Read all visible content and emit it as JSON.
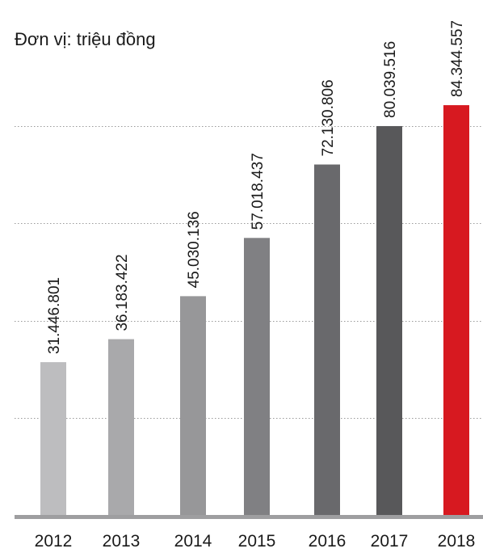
{
  "chart_data": {
    "type": "bar",
    "title": "",
    "unit_label": "Đơn vị: triệu đồng",
    "xlabel": "",
    "ylabel": "",
    "categories": [
      "2012",
      "2013",
      "2014",
      "2015",
      "2016",
      "2017",
      "2018"
    ],
    "values": [
      31446801,
      36183422,
      45030136,
      57018437,
      72130806,
      80039516,
      84344557
    ],
    "value_labels": [
      "31.446.801",
      "36.183.422",
      "45.030.136",
      "57.018.437",
      "72.130.806",
      "80.039.516",
      "84.344.557"
    ],
    "bar_colors": [
      "#bdbdbf",
      "#a9a9ab",
      "#979799",
      "#808083",
      "#69696c",
      "#58585a",
      "#d71920"
    ],
    "ylim": [
      0,
      91000000
    ],
    "gridlines": [
      20000000,
      40000000,
      60000000,
      80000000
    ],
    "grid": true,
    "grid_style": "dotted",
    "axis_color": "#9e9ea0",
    "legend": "none"
  }
}
